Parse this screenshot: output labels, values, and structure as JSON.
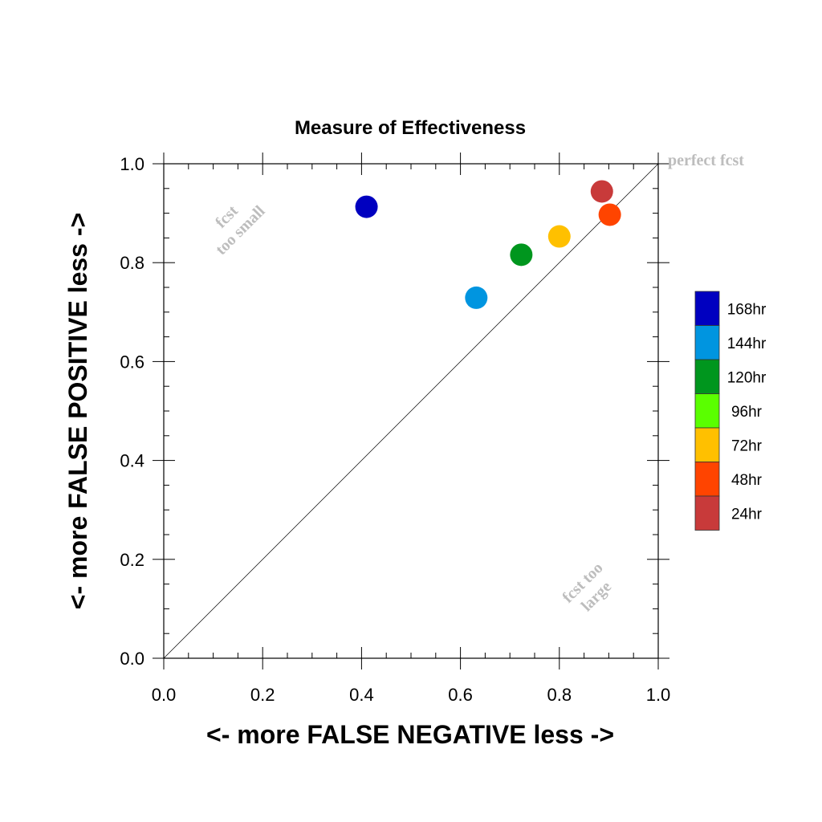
{
  "chart_data": {
    "type": "scatter",
    "title": "Measure of Effectiveness",
    "xlabel": "<- more   FALSE NEGATIVE   less ->",
    "ylabel": "<- more   FALSE POSITIVE   less ->",
    "xlim": [
      0.0,
      1.0
    ],
    "ylim": [
      0.0,
      1.0
    ],
    "xticks": [
      "0.0",
      "0.2",
      "0.4",
      "0.6",
      "0.8",
      "1.0"
    ],
    "yticks": [
      "0.0",
      "0.2",
      "0.4",
      "0.6",
      "0.8",
      "1.0"
    ],
    "grid": false,
    "reference_line": {
      "from": [
        0,
        0
      ],
      "to": [
        1,
        1
      ]
    },
    "annotations": [
      {
        "text": "perfect fcst",
        "x": 1.0,
        "y": 1.0
      },
      {
        "lines": [
          "fcst",
          "too small"
        ],
        "x": 0.14,
        "y": 0.88
      },
      {
        "lines": [
          "fcst too",
          "large"
        ],
        "x": 0.86,
        "y": 0.14
      }
    ],
    "legend_placement": "right",
    "series": [
      {
        "name": "168hr",
        "color": "#0000c0",
        "x": 0.41,
        "y": 0.913
      },
      {
        "name": "144hr",
        "color": "#0095e0",
        "x": 0.632,
        "y": 0.729
      },
      {
        "name": "120hr",
        "color": "#00961e",
        "x": 0.723,
        "y": 0.816
      },
      {
        "name": "96hr",
        "color": "#5aff00",
        "x": null,
        "y": null
      },
      {
        "name": "72hr",
        "color": "#ffc000",
        "x": 0.8,
        "y": 0.853
      },
      {
        "name": "48hr",
        "color": "#ff4400",
        "x": 0.902,
        "y": 0.897
      },
      {
        "name": "24hr",
        "color": "#c83a3a",
        "x": 0.886,
        "y": 0.944
      }
    ]
  }
}
